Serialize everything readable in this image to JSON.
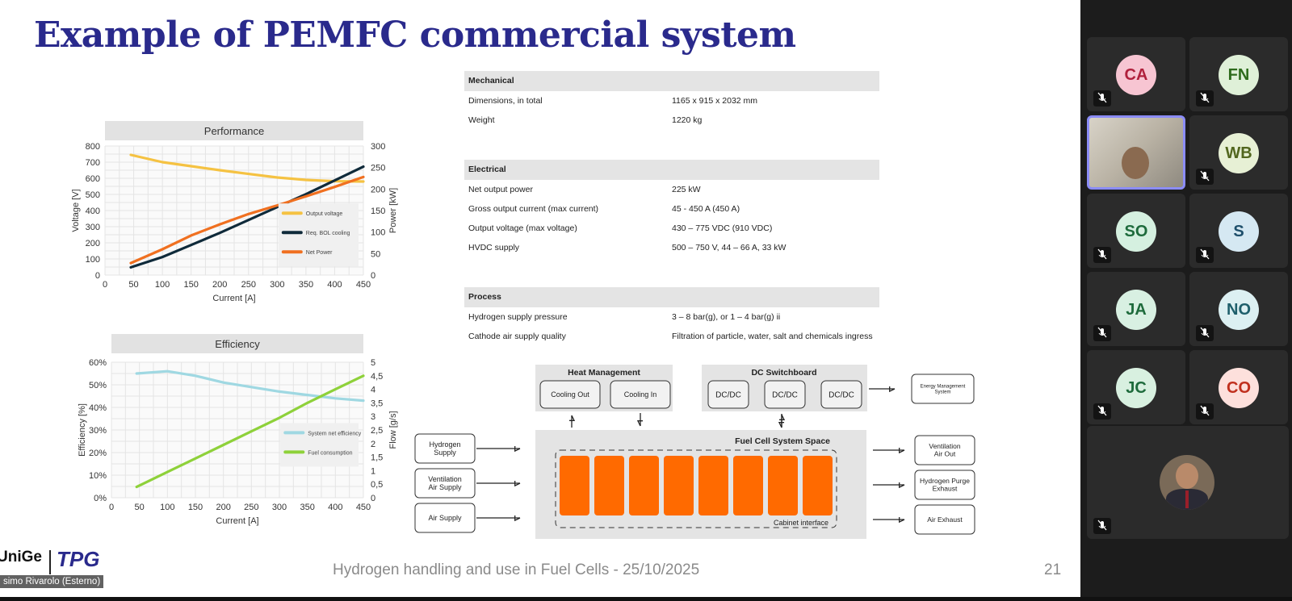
{
  "slide": {
    "title": "Example of PEMFC commercial system",
    "footer": "Hydrogen handling and use in Fuel Cells - 25/10/2025",
    "page_number": "21",
    "logo_left": "UniGe",
    "logo_right": "TPG",
    "presenter_label": "simo Rivarolo (Esterno)"
  },
  "specs": {
    "sections": [
      {
        "title": "Mechanical",
        "rows": [
          {
            "label": "Dimensions, in total",
            "value": "1165 x 915 x 2032 mm"
          },
          {
            "label": "Weight",
            "value": "1220 kg"
          }
        ]
      },
      {
        "title": "Electrical",
        "rows": [
          {
            "label": "Net output power",
            "value": "225 kW"
          },
          {
            "label": "Gross output current (max current)",
            "value": "45 - 450 A (450 A)"
          },
          {
            "label": "Output voltage (max voltage)",
            "value": "430 – 775 VDC (910 VDC)"
          },
          {
            "label": "HVDC supply",
            "value": "500 – 750 V, 44 – 66 A, 33 kW"
          }
        ]
      },
      {
        "title": "Process",
        "rows": [
          {
            "label": "Hydrogen supply pressure",
            "value": "3 – 8 bar(g), or 1 – 4 bar(g) ii"
          },
          {
            "label": "Cathode air supply quality",
            "value": "Filtration of particle, water, salt and chemicals ingress"
          }
        ]
      }
    ]
  },
  "diagram": {
    "heat_management": "Heat Management",
    "cooling_out": "Cooling Out",
    "cooling_in": "Cooling In",
    "dc_switchboard": "DC Switchboard",
    "dcdc": [
      "DC/DC",
      "DC/DC",
      "DC/DC"
    ],
    "energy_management": [
      "Energy Management",
      "System"
    ],
    "fuel_cell_space": "Fuel Cell System Space",
    "cabinet_interface": "Cabinet interface",
    "inputs": [
      [
        "Hydrogen",
        "Supply"
      ],
      [
        "Ventilation",
        "Air Supply"
      ],
      [
        "Air Supply"
      ]
    ],
    "outputs": [
      [
        "Ventilation",
        "Air Out"
      ],
      [
        "Hydrogen Purge",
        "Exhaust"
      ],
      [
        "Air Exhaust"
      ]
    ],
    "stack_count": 8,
    "stack_color": "#ff6a00"
  },
  "chart_data": [
    {
      "type": "line",
      "title": "Performance",
      "xlabel": "Current [A]",
      "ylabel": "Voltage [V]",
      "y2label": "Power [kW]",
      "xlim": [
        0,
        450
      ],
      "ylim": [
        0,
        800
      ],
      "y2lim": [
        0,
        300
      ],
      "xticks": [
        "0",
        "50",
        "100",
        "150",
        "200",
        "250",
        "300",
        "350",
        "400",
        "450"
      ],
      "yticks": [
        "0",
        "100",
        "200",
        "300",
        "400",
        "500",
        "600",
        "700",
        "800"
      ],
      "y2ticks": [
        "0",
        "50",
        "100",
        "150",
        "200",
        "250",
        "300"
      ],
      "grid": true,
      "legend": "right",
      "series": [
        {
          "name": "Output voltage",
          "axis": "left",
          "color": "#f5c242",
          "x": [
            45,
            100,
            150,
            200,
            250,
            300,
            350,
            400,
            450
          ],
          "y": [
            745,
            700,
            675,
            650,
            627,
            605,
            590,
            582,
            580
          ]
        },
        {
          "name": "Req. BOL cooling",
          "axis": "right",
          "color": "#0f2a3a",
          "x": [
            45,
            100,
            150,
            200,
            250,
            300,
            350,
            400,
            450
          ],
          "y": [
            18,
            42,
            70,
            98,
            128,
            158,
            188,
            220,
            252
          ]
        },
        {
          "name": "Net Power",
          "axis": "right",
          "color": "#f07020",
          "x": [
            45,
            100,
            150,
            200,
            250,
            300,
            350,
            400,
            450
          ],
          "y": [
            28,
            60,
            92,
            118,
            142,
            162,
            183,
            205,
            228
          ]
        }
      ]
    },
    {
      "type": "line",
      "title": "Efficiency",
      "xlabel": "Current [A]",
      "ylabel": "Efficiency [%]",
      "y2label": "Flow [g/s]",
      "xlim": [
        0,
        450
      ],
      "ylim": [
        0,
        60
      ],
      "y2lim": [
        0,
        5
      ],
      "xticks": [
        "0",
        "50",
        "100",
        "150",
        "200",
        "250",
        "300",
        "350",
        "400",
        "450"
      ],
      "yticks": [
        "0%",
        "10%",
        "20%",
        "30%",
        "40%",
        "50%",
        "60%"
      ],
      "y2ticks": [
        "0",
        "0,5",
        "1",
        "1,5",
        "2",
        "2,5",
        "3",
        "3,5",
        "4",
        "4,5",
        "5"
      ],
      "grid": true,
      "legend": "right",
      "series": [
        {
          "name": "System net efficiency",
          "axis": "left",
          "color": "#9fd8e2",
          "x": [
            45,
            100,
            150,
            200,
            250,
            300,
            350,
            400,
            450
          ],
          "y": [
            55,
            56,
            54,
            51,
            49,
            47,
            45.5,
            44,
            43
          ]
        },
        {
          "name": "Fuel consumption",
          "axis": "right",
          "color": "#8ed13a",
          "x": [
            45,
            100,
            150,
            200,
            250,
            300,
            350,
            400,
            450
          ],
          "y": [
            0.4,
            0.95,
            1.45,
            1.95,
            2.45,
            2.95,
            3.5,
            4.0,
            4.5
          ]
        }
      ]
    }
  ],
  "participants": [
    {
      "initials": "CA",
      "bg": "#f7c5d2",
      "fg": "#b0203c"
    },
    {
      "initials": "FN",
      "bg": "#dff0d8",
      "fg": "#2e6b1c"
    },
    {
      "initials": "",
      "video": true
    },
    {
      "initials": "WB",
      "bg": "#e7f0d5",
      "fg": "#52661e"
    },
    {
      "initials": "SO",
      "bg": "#d5f0e0",
      "fg": "#1e6b3c"
    },
    {
      "initials": "S",
      "bg": "#d5e8f2",
      "fg": "#1e4f6b"
    },
    {
      "initials": "JA",
      "bg": "#d8f0e2",
      "fg": "#1e6b3c"
    },
    {
      "initials": "NO",
      "bg": "#dcf0f2",
      "fg": "#1e5f6b"
    },
    {
      "initials": "JC",
      "bg": "#d8f0e0",
      "fg": "#1e6b3c"
    },
    {
      "initials": "CO",
      "bg": "#fde0dc",
      "fg": "#c0301e"
    }
  ]
}
